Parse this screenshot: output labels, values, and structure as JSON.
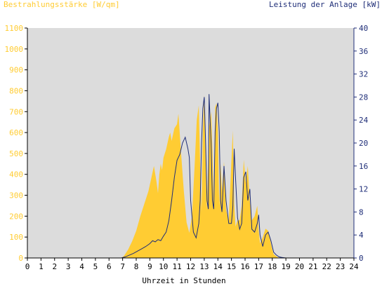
{
  "header": {
    "left_title": "Bestrahlungsstärke [W/qm]",
    "right_title": "Leistung der Anlage [kW]"
  },
  "colors": {
    "irradiance": "#FFCC33",
    "power": "#1F2E78",
    "plot_bg": "#DCDCDC",
    "left_axis_text": "#FFCC33",
    "right_axis_text": "#1F2E78"
  },
  "chart_data": {
    "type": "area",
    "xlabel": "Uhrzeit in Stunden",
    "x_ticks": [
      "0",
      "1",
      "2",
      "3",
      "4",
      "5",
      "6",
      "7",
      "8",
      "9",
      "10",
      "11",
      "12",
      "13",
      "14",
      "15",
      "16",
      "17",
      "18",
      "19",
      "20",
      "21",
      "22",
      "23",
      "24"
    ],
    "xlim": [
      0,
      24
    ],
    "ylabel_left": "Bestrahlungsstärke [W/qm]",
    "ylim_left": [
      0,
      1100
    ],
    "y_ticks_left": [
      "0",
      "100",
      "200",
      "300",
      "400",
      "500",
      "600",
      "700",
      "800",
      "900",
      "1000",
      "1100"
    ],
    "ylabel_right": "Leistung der Anlage [kW]",
    "ylim_right": [
      0,
      40
    ],
    "y_ticks_right": [
      "0",
      "4",
      "8",
      "12",
      "16",
      "20",
      "24",
      "28",
      "32",
      "36",
      "40"
    ],
    "grid": false,
    "series": [
      {
        "axis": "left",
        "style": "area",
        "x": [
          0,
          6.9,
          7.1,
          7.4,
          7.7,
          8.0,
          8.3,
          8.6,
          8.9,
          9.1,
          9.3,
          9.5,
          9.6,
          9.7,
          9.8,
          9.9,
          10.0,
          10.2,
          10.4,
          10.5,
          10.6,
          10.8,
          11.0,
          11.1,
          11.3,
          11.5,
          11.7,
          11.9,
          12.1,
          12.3,
          12.45,
          12.6,
          12.7,
          12.8,
          12.9,
          13.0,
          13.1,
          13.2,
          13.35,
          13.5,
          13.6,
          13.7,
          13.8,
          13.9,
          14.0,
          14.1,
          14.2,
          14.3,
          14.45,
          14.6,
          14.8,
          15.0,
          15.1,
          15.2,
          15.3,
          15.45,
          15.6,
          15.75,
          15.9,
          16.05,
          16.2,
          16.35,
          16.5,
          16.7,
          16.9,
          17.0,
          17.1,
          17.3,
          17.5,
          17.7,
          17.9,
          18.0,
          18.1,
          18.3,
          18.5,
          18.7,
          19.0,
          24
        ],
        "y": [
          0,
          0,
          10,
          40,
          80,
          130,
          200,
          260,
          320,
          380,
          440,
          360,
          310,
          400,
          450,
          420,
          480,
          520,
          580,
          600,
          560,
          620,
          640,
          690,
          500,
          320,
          170,
          120,
          200,
          450,
          660,
          730,
          440,
          220,
          610,
          780,
          470,
          230,
          620,
          700,
          520,
          250,
          720,
          740,
          610,
          250,
          450,
          320,
          460,
          230,
          180,
          470,
          610,
          260,
          150,
          180,
          180,
          250,
          470,
          360,
          440,
          270,
          180,
          200,
          250,
          130,
          70,
          100,
          140,
          130,
          70,
          40,
          18,
          8,
          0,
          0,
          0,
          0
        ],
        "name": ""
      },
      {
        "axis": "right",
        "style": "line",
        "x": [
          0,
          6.9,
          7.2,
          7.5,
          7.8,
          8.1,
          8.4,
          8.7,
          9.0,
          9.2,
          9.4,
          9.6,
          9.8,
          10.0,
          10.2,
          10.4,
          10.6,
          10.8,
          11.0,
          11.2,
          11.4,
          11.6,
          11.8,
          11.9,
          12.0,
          12.2,
          12.4,
          12.6,
          12.7,
          12.8,
          12.9,
          13.0,
          13.1,
          13.2,
          13.3,
          13.35,
          13.5,
          13.6,
          13.7,
          13.8,
          13.9,
          14.0,
          14.1,
          14.2,
          14.3,
          14.45,
          14.6,
          14.8,
          15.0,
          15.1,
          15.2,
          15.3,
          15.45,
          15.6,
          15.75,
          15.9,
          16.05,
          16.2,
          16.35,
          16.5,
          16.7,
          16.9,
          17.0,
          17.1,
          17.3,
          17.5,
          17.7,
          17.9,
          18.1,
          18.3,
          18.5,
          18.7,
          19.0,
          24
        ],
        "y": [
          0,
          0,
          0.2,
          0.5,
          0.8,
          1.2,
          1.6,
          2.0,
          2.5,
          3.0,
          2.8,
          3.2,
          3.0,
          3.8,
          4.5,
          6.5,
          10.0,
          14.0,
          17.0,
          18.0,
          20.0,
          21.0,
          19.0,
          17.5,
          10.0,
          4.5,
          3.5,
          6.0,
          10.0,
          20.0,
          26.0,
          28.0,
          20.0,
          10.0,
          8.5,
          28.5,
          20.0,
          10.0,
          8.5,
          22.0,
          26.0,
          27.0,
          22.0,
          10.0,
          8.0,
          16.0,
          10.0,
          6.0,
          6.0,
          9.0,
          19.0,
          14.0,
          7.0,
          5.0,
          6.0,
          14.0,
          15.0,
          10.0,
          12.0,
          5.0,
          4.5,
          6.0,
          7.5,
          4.0,
          2.0,
          4.0,
          4.5,
          3.0,
          1.0,
          0.5,
          0.2,
          0.1,
          0,
          0
        ],
        "name": ""
      }
    ]
  }
}
